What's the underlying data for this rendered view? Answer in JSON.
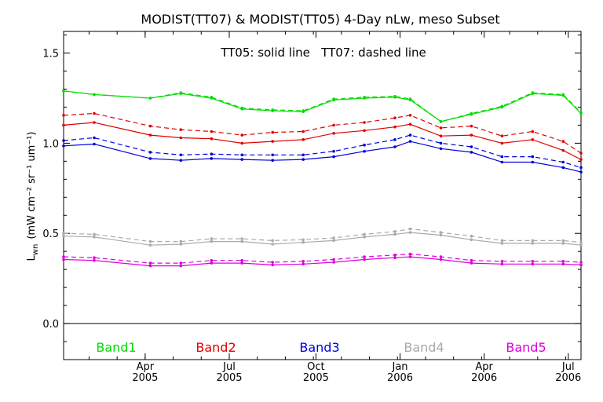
{
  "chart_data": {
    "type": "line",
    "title": "MODIST(TT07) & MODIST(TT05) 4-Day nLw, meso Subset",
    "annotation": "TT05: solid line   TT07: dashed line",
    "ylabel_main": "L",
    "ylabel_sub": "wn",
    "ylabel_units": "(mW cm⁻² sr⁻¹ um⁻¹)",
    "ylim": [
      -0.2,
      1.62
    ],
    "xlim": [
      0,
      20.3
    ],
    "y_ticks": [
      {
        "v": 0.0,
        "label": "0.0"
      },
      {
        "v": 0.5,
        "label": "0.5"
      },
      {
        "v": 1.0,
        "label": "1.0"
      },
      {
        "v": 1.5,
        "label": "1.5"
      }
    ],
    "x_ticks": [
      {
        "v": 3.2,
        "month": "Apr",
        "year": "2005"
      },
      {
        "v": 6.5,
        "month": "Jul",
        "year": "2005"
      },
      {
        "v": 9.9,
        "month": "Oct",
        "year": "2005"
      },
      {
        "v": 13.2,
        "month": "Jan",
        "year": "2006"
      },
      {
        "v": 16.5,
        "month": "Apr",
        "year": "2006"
      },
      {
        "v": 19.8,
        "month": "Jul",
        "year": "2006"
      }
    ],
    "zero_line": 0.0,
    "grid": false,
    "x": [
      0,
      1.2,
      3.4,
      4.6,
      5.8,
      7,
      8.2,
      9.4,
      10.6,
      11.8,
      13,
      13.6,
      14.8,
      16,
      17.2,
      18.4,
      19.6,
      20.3
    ],
    "series": [
      {
        "name": "Band1",
        "color": "#00dd00",
        "solid": [
          1.29,
          1.27,
          1.25,
          1.275,
          1.25,
          1.19,
          1.18,
          1.175,
          1.24,
          1.25,
          1.255,
          1.24,
          1.12,
          1.16,
          1.2,
          1.275,
          1.265,
          1.165
        ],
        "dashed": [
          1.29,
          1.27,
          1.25,
          1.28,
          1.255,
          1.195,
          1.185,
          1.18,
          1.245,
          1.255,
          1.26,
          1.245,
          1.12,
          1.165,
          1.205,
          1.28,
          1.27,
          1.17
        ]
      },
      {
        "name": "Band2",
        "color": "#e00000",
        "solid": [
          1.1,
          1.115,
          1.045,
          1.03,
          1.025,
          1.0,
          1.01,
          1.02,
          1.055,
          1.07,
          1.09,
          1.105,
          1.04,
          1.045,
          1.0,
          1.02,
          0.96,
          0.91
        ],
        "dashed": [
          1.155,
          1.165,
          1.095,
          1.075,
          1.065,
          1.045,
          1.06,
          1.065,
          1.1,
          1.115,
          1.14,
          1.155,
          1.085,
          1.095,
          1.04,
          1.065,
          1.01,
          0.945
        ]
      },
      {
        "name": "Band3",
        "color": "#0000dd",
        "solid": [
          0.985,
          0.995,
          0.915,
          0.905,
          0.915,
          0.91,
          0.905,
          0.91,
          0.925,
          0.955,
          0.98,
          1.01,
          0.97,
          0.95,
          0.895,
          0.895,
          0.865,
          0.84
        ],
        "dashed": [
          1.015,
          1.03,
          0.95,
          0.935,
          0.94,
          0.935,
          0.935,
          0.935,
          0.955,
          0.99,
          1.02,
          1.045,
          1.0,
          0.98,
          0.925,
          0.925,
          0.895,
          0.865
        ]
      },
      {
        "name": "Band4",
        "color": "#aaaaaa",
        "solid": [
          0.485,
          0.48,
          0.435,
          0.44,
          0.455,
          0.455,
          0.44,
          0.45,
          0.46,
          0.48,
          0.495,
          0.505,
          0.49,
          0.465,
          0.445,
          0.445,
          0.445,
          0.435
        ],
        "dashed": [
          0.5,
          0.495,
          0.455,
          0.455,
          0.47,
          0.47,
          0.46,
          0.465,
          0.475,
          0.495,
          0.51,
          0.525,
          0.505,
          0.485,
          0.46,
          0.46,
          0.46,
          0.45
        ]
      },
      {
        "name": "Band5",
        "color": "#dd00dd",
        "solid": [
          0.355,
          0.35,
          0.32,
          0.32,
          0.335,
          0.335,
          0.325,
          0.33,
          0.34,
          0.355,
          0.365,
          0.37,
          0.355,
          0.335,
          0.33,
          0.33,
          0.33,
          0.325
        ],
        "dashed": [
          0.37,
          0.365,
          0.335,
          0.335,
          0.35,
          0.35,
          0.34,
          0.345,
          0.355,
          0.37,
          0.38,
          0.385,
          0.37,
          0.35,
          0.345,
          0.345,
          0.345,
          0.34
        ]
      }
    ],
    "legend": [
      "Band1",
      "Band2",
      "Band3",
      "Band4",
      "Band5"
    ]
  }
}
